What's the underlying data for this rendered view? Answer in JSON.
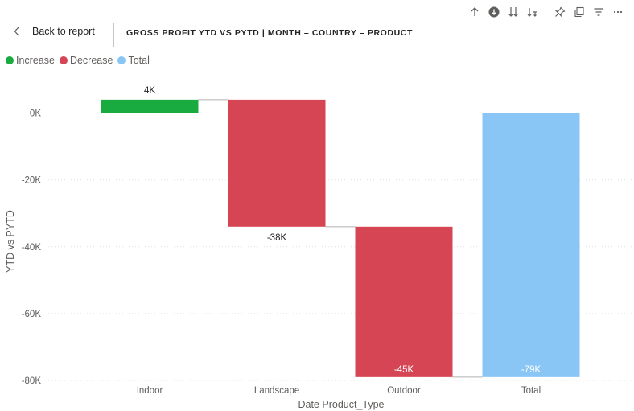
{
  "toolbar": {
    "icons": [
      "arrow-up-icon",
      "drill-down-circle-icon",
      "double-arrow-down-icon",
      "expand-hierarchy-icon",
      "pin-icon",
      "copy-icon",
      "filter-icon",
      "more-options-icon"
    ]
  },
  "header": {
    "back_label": "Back to report",
    "title": "GROSS PROFIT YTD VS PYTD | MONTH – COUNTRY – PRODUCT"
  },
  "legend": [
    {
      "label": "Increase",
      "color": "#1aab40"
    },
    {
      "label": "Decrease",
      "color": "#d64554"
    },
    {
      "label": "Total",
      "color": "#8ac6f5"
    }
  ],
  "chart_data": {
    "type": "bar",
    "subtype": "waterfall",
    "xlabel": "Date Product_Type",
    "ylabel": "YTD vs PYTD",
    "categories": [
      "Indoor",
      "Landscape",
      "Outdoor",
      "Total"
    ],
    "values": [
      4,
      -38,
      -45,
      -79
    ],
    "data_labels": [
      "4K",
      "-38K",
      "-45K",
      "-79K"
    ],
    "kinds": [
      "Increase",
      "Decrease",
      "Decrease",
      "Total"
    ],
    "yticks": [
      "0K",
      "-20K",
      "-40K",
      "-60K",
      "-80K"
    ],
    "ytick_values": [
      0,
      -20,
      -40,
      -60,
      -80
    ],
    "ylim": [
      -80,
      5
    ],
    "gridlines": true,
    "legend_position": "top-left"
  }
}
